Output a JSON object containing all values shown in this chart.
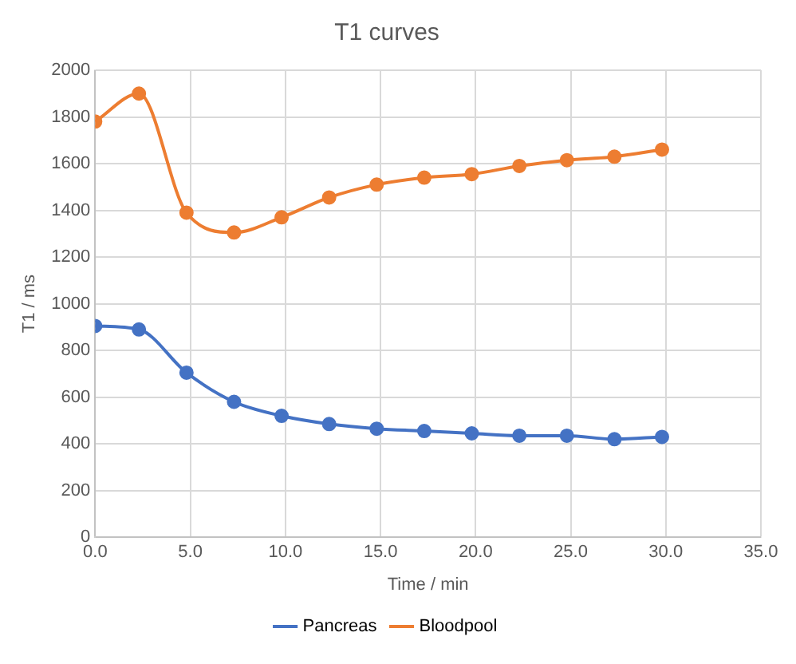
{
  "chart_data": {
    "type": "line",
    "title": "T1 curves",
    "xlabel": "Time / min",
    "ylabel": "T1 / ms",
    "x": [
      0,
      2.3,
      4.8,
      7.3,
      9.8,
      12.3,
      14.8,
      17.3,
      19.8,
      22.3,
      24.8,
      27.3,
      29.8
    ],
    "series": [
      {
        "name": "Pancreas",
        "color": "#4472c4",
        "values": [
          905,
          890,
          705,
          580,
          520,
          485,
          465,
          455,
          445,
          435,
          435,
          420,
          430
        ]
      },
      {
        "name": "Bloodpool",
        "color": "#ed7d31",
        "values": [
          1780,
          1900,
          1390,
          1305,
          1370,
          1455,
          1510,
          1540,
          1555,
          1590,
          1615,
          1630,
          1660
        ]
      }
    ],
    "xlim": [
      0,
      35
    ],
    "xticks": [
      {
        "value": 0,
        "label": "0.0"
      },
      {
        "value": 5,
        "label": "5.0"
      },
      {
        "value": 10,
        "label": "10.0"
      },
      {
        "value": 15,
        "label": "15.0"
      },
      {
        "value": 20,
        "label": "20.0"
      },
      {
        "value": 25,
        "label": "25.0"
      },
      {
        "value": 30,
        "label": "30.0"
      },
      {
        "value": 35,
        "label": "35.0"
      }
    ],
    "ylim": [
      0,
      2000
    ],
    "yticks": [
      0,
      200,
      400,
      600,
      800,
      1000,
      1200,
      1400,
      1600,
      1800,
      2000
    ],
    "grid": true,
    "legend": "bottom",
    "marker": "circle",
    "line_style": "solid"
  }
}
